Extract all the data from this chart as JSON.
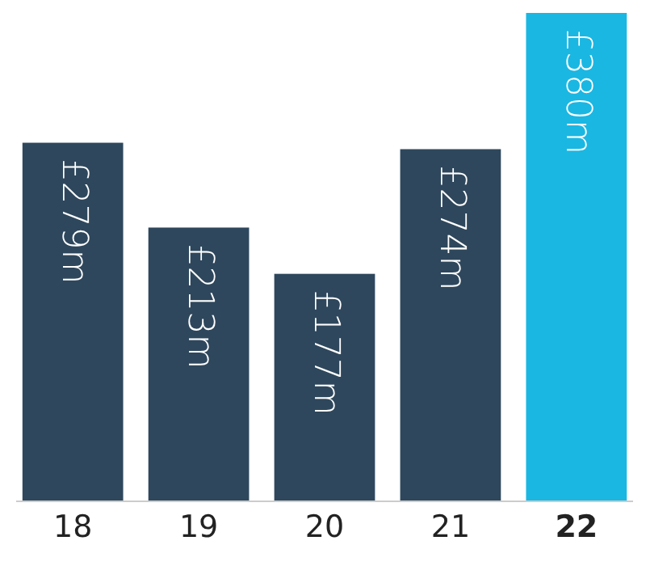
{
  "chart_data": {
    "type": "bar",
    "categories": [
      "18",
      "19",
      "20",
      "21",
      "22"
    ],
    "values": [
      279,
      213,
      177,
      274,
      380
    ],
    "value_labels": [
      "£279m",
      "£213m",
      "£177m",
      "£274m",
      "£380m"
    ],
    "colors": [
      "#2e475c",
      "#2e475c",
      "#2e475c",
      "#2e475c",
      "#1ab7e2"
    ]
  }
}
